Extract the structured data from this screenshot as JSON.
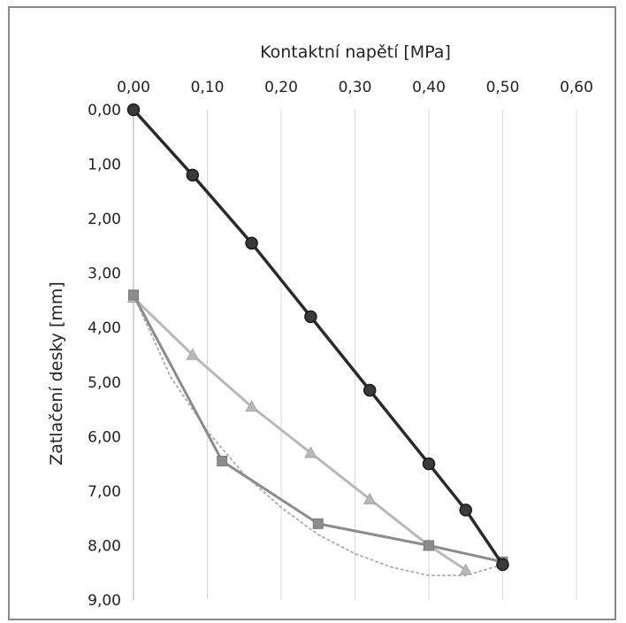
{
  "chart_data": {
    "type": "line",
    "xlabel": "Kontaktní napětí [MPa]",
    "ylabel": "Zatlačení desky [mm]",
    "x_axis_position": "top",
    "y_axis_inverted": true,
    "xlim": [
      0,
      0.6
    ],
    "ylim": [
      0,
      9
    ],
    "x_ticks": [
      "0,00",
      "0,10",
      "0,20",
      "0,30",
      "0,40",
      "0,50",
      "0,60"
    ],
    "y_ticks": [
      "0,00",
      "1,00",
      "2,00",
      "3,00",
      "4,00",
      "5,00",
      "6,00",
      "7,00",
      "8,00",
      "9,00"
    ],
    "grid": {
      "vertical": true,
      "horizontal": false
    },
    "legend": "none",
    "colors": {
      "series_dark": "#2a2a2a",
      "series_light": "#b8b8b8",
      "series_mid": "#8c8c8c",
      "trend": "#b0b0b0",
      "grid": "#d9d9d9"
    },
    "series": [
      {
        "marker": "circle",
        "color": "#2a2a2a",
        "points": [
          [
            0,
            0
          ],
          [
            0.08,
            1.2
          ],
          [
            0.16,
            2.45
          ],
          [
            0.24,
            3.8
          ],
          [
            0.32,
            5.15
          ],
          [
            0.4,
            6.5
          ],
          [
            0.45,
            7.35
          ],
          [
            0.5,
            8.35
          ]
        ]
      },
      {
        "marker": "triangle",
        "color": "#b8b8b8",
        "points": [
          [
            0,
            3.45
          ],
          [
            0.08,
            4.5
          ],
          [
            0.16,
            5.45
          ],
          [
            0.24,
            6.3
          ],
          [
            0.32,
            7.15
          ],
          [
            0.4,
            8.0
          ],
          [
            0.45,
            8.45
          ]
        ]
      },
      {
        "marker": "square",
        "color": "#8c8c8c",
        "points": [
          [
            0,
            3.4
          ],
          [
            0.12,
            6.45
          ],
          [
            0.25,
            7.6
          ],
          [
            0.4,
            8.0
          ],
          [
            0.5,
            8.3
          ]
        ]
      },
      {
        "marker": "none",
        "line_style": "dotted",
        "color": "#b0b0b0",
        "points": [
          [
            0,
            3.4
          ],
          [
            0.05,
            4.9
          ],
          [
            0.1,
            5.9
          ],
          [
            0.15,
            6.7
          ],
          [
            0.2,
            7.3
          ],
          [
            0.25,
            7.8
          ],
          [
            0.3,
            8.15
          ],
          [
            0.35,
            8.4
          ],
          [
            0.4,
            8.55
          ],
          [
            0.45,
            8.55
          ],
          [
            0.5,
            8.35
          ]
        ]
      }
    ]
  }
}
